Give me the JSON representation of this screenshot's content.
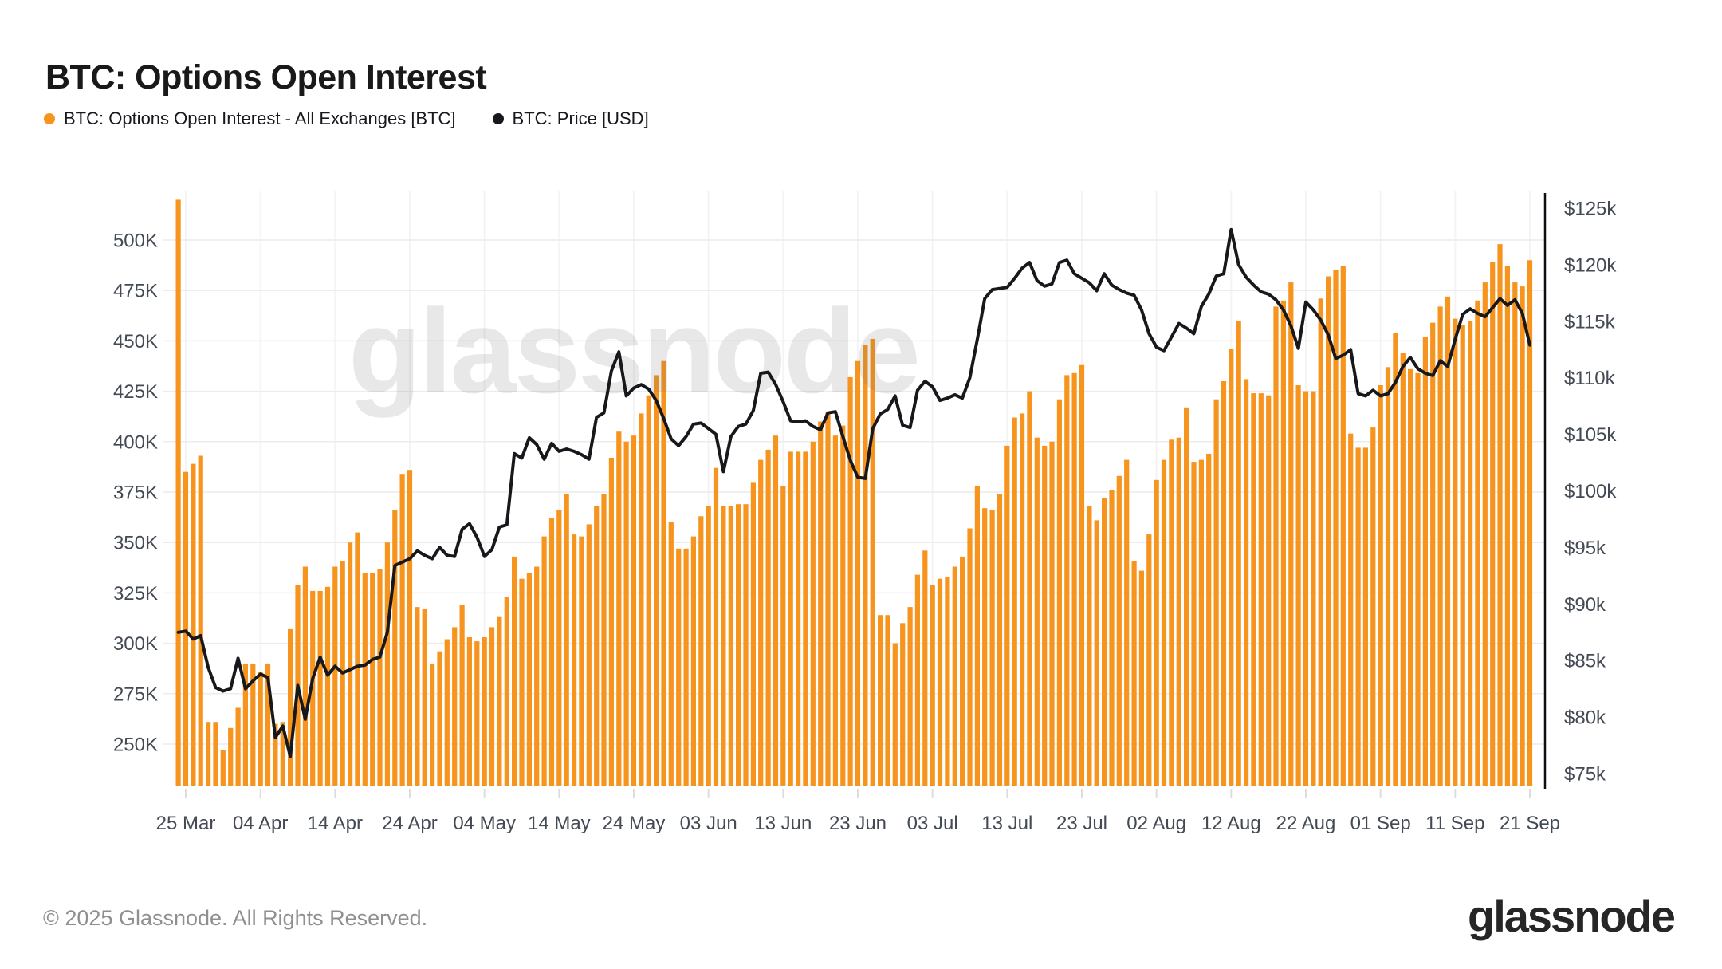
{
  "header": {
    "title": "BTC: Options Open Interest"
  },
  "legend": [
    {
      "label": "BTC: Options Open Interest - All Exchanges [BTC]",
      "color": "#f7941d"
    },
    {
      "label": "BTC: Price [USD]",
      "color": "#17181c"
    }
  ],
  "watermark": {
    "text": "glassnode"
  },
  "footer": {
    "copyright": "© 2025 Glassnode. All Rights Reserved.",
    "logo_text": "glassnode"
  },
  "chart_data": {
    "type": "combo",
    "title": "BTC: Options Open Interest",
    "grid": "horizontal-light",
    "legend_position": "top-left",
    "x_start_date": "24 Mar",
    "x_end_date": "21 Sep",
    "x_ticks": {
      "indices": [
        1,
        11,
        21,
        31,
        41,
        51,
        61,
        71,
        81,
        91,
        101,
        111,
        121,
        131,
        141,
        151,
        161,
        171,
        181
      ],
      "labels": [
        "25 Mar",
        "04 Apr",
        "14 Apr",
        "24 Apr",
        "04 May",
        "14 May",
        "24 May",
        "03 Jun",
        "13 Jun",
        "23 Jun",
        "03 Jul",
        "13 Jul",
        "23 Jul",
        "02 Aug",
        "12 Aug",
        "22 Aug",
        "01 Sep",
        "11 Sep",
        "21 Sep"
      ]
    },
    "left_axis": {
      "title": "Options Open Interest [BTC]",
      "tick_values": [
        250,
        275,
        300,
        325,
        350,
        375,
        400,
        425,
        450,
        475,
        500
      ],
      "tick_labels": [
        "250K",
        "275K",
        "300K",
        "325K",
        "350K",
        "375K",
        "400K",
        "425K",
        "450K",
        "475K",
        "500K"
      ],
      "unit": "K",
      "plot_range": [
        229.5,
        521.5
      ]
    },
    "right_axis": {
      "title": "Price [USD]",
      "tick_values": [
        75,
        80,
        85,
        90,
        95,
        100,
        105,
        110,
        115,
        120,
        125
      ],
      "tick_labels": [
        "$75k",
        "$80k",
        "$85k",
        "$90k",
        "$95k",
        "$100k",
        "$105k",
        "$110k",
        "$115k",
        "$120k",
        "$125k"
      ],
      "unit": "$k",
      "plot_range": [
        72.4,
        126.5
      ]
    },
    "series": [
      {
        "name": "BTC: Options Open Interest - All Exchanges [BTC]",
        "type": "bar",
        "color": "#f7941d",
        "axis": "left",
        "values": [
          520,
          385,
          389,
          393,
          261,
          261,
          247,
          258,
          268,
          290,
          290,
          286,
          290,
          260,
          261,
          307,
          329,
          338,
          326,
          326,
          328,
          338,
          341,
          350,
          355,
          335,
          335,
          337,
          350,
          366,
          384,
          386,
          318,
          317,
          290,
          296,
          302,
          308,
          319,
          303,
          301,
          303,
          308,
          313,
          323,
          343,
          332,
          335,
          338,
          353,
          362,
          366,
          374,
          354,
          353,
          359,
          368,
          374,
          392,
          405,
          400,
          403,
          414,
          423,
          433,
          440,
          360,
          347,
          347,
          353,
          363,
          368,
          387,
          368,
          368,
          369,
          369,
          380,
          391,
          396,
          403,
          378,
          395,
          395,
          395,
          400,
          410,
          415,
          403,
          408,
          432,
          440,
          448,
          451,
          314,
          314,
          300,
          310,
          318,
          334,
          346,
          329,
          332,
          333,
          338,
          343,
          357,
          378,
          367,
          366,
          374,
          398,
          412,
          414,
          425,
          402,
          398,
          400,
          421,
          433,
          434,
          438,
          368,
          361,
          372,
          376,
          383,
          391,
          341,
          336,
          354,
          381,
          391,
          401,
          402,
          417,
          390,
          391,
          394,
          421,
          430,
          446,
          460,
          431,
          424,
          424,
          423,
          467,
          470,
          479,
          428,
          425,
          425,
          471,
          482,
          485,
          487,
          404,
          397,
          397,
          407,
          428,
          437,
          454,
          444,
          436,
          434,
          452,
          459,
          467,
          472,
          461,
          458,
          460,
          470,
          479,
          489,
          498,
          487,
          479,
          477,
          490
        ]
      },
      {
        "name": "BTC: Price [USD]",
        "type": "line",
        "color": "#17181c",
        "axis": "right",
        "values": [
          87.5,
          87.6,
          86.9,
          87.2,
          84.4,
          82.6,
          82.3,
          82.5,
          85.2,
          82.5,
          83.2,
          83.8,
          83.5,
          78.2,
          79.2,
          76.5,
          82.8,
          79.8,
          83.4,
          85.3,
          83.7,
          84.5,
          83.9,
          84.2,
          84.5,
          84.6,
          85.1,
          85.3,
          87.5,
          93.4,
          93.7,
          94.0,
          94.7,
          94.3,
          94.0,
          95.0,
          94.3,
          94.2,
          96.6,
          97.1,
          95.9,
          94.2,
          94.8,
          96.8,
          97.0,
          103.3,
          102.9,
          104.7,
          104.1,
          102.8,
          104.2,
          103.5,
          103.7,
          103.5,
          103.2,
          102.8,
          106.5,
          106.9,
          110.6,
          112.3,
          108.4,
          109.1,
          109.4,
          109.0,
          108.0,
          106.4,
          104.6,
          104.0,
          104.8,
          105.9,
          106.0,
          105.5,
          105.0,
          101.7,
          104.8,
          105.7,
          105.9,
          107.1,
          110.4,
          110.5,
          109.4,
          107.9,
          106.2,
          106.1,
          106.2,
          105.7,
          105.4,
          106.9,
          107.0,
          104.8,
          102.7,
          101.2,
          101.1,
          105.5,
          106.8,
          107.2,
          108.4,
          105.8,
          105.6,
          108.9,
          109.7,
          109.2,
          108.0,
          108.2,
          108.5,
          108.2,
          110.0,
          113.4,
          117.0,
          117.8,
          117.9,
          118.0,
          118.8,
          119.7,
          120.2,
          118.6,
          118.1,
          118.3,
          120.2,
          120.4,
          119.2,
          118.8,
          118.4,
          117.7,
          119.2,
          118.2,
          117.8,
          117.5,
          117.3,
          116.0,
          113.9,
          112.7,
          112.4,
          113.6,
          114.8,
          114.4,
          113.9,
          116.3,
          117.4,
          119.0,
          119.2,
          123.1,
          120.0,
          118.9,
          118.2,
          117.6,
          117.4,
          116.9,
          116.0,
          114.6,
          112.6,
          116.7,
          116.0,
          115.1,
          113.8,
          111.7,
          112.0,
          112.5,
          108.6,
          108.4,
          108.9,
          108.4,
          108.6,
          109.6,
          111.0,
          111.8,
          110.8,
          110.4,
          110.2,
          111.5,
          111.0,
          113.4,
          115.6,
          116.1,
          115.7,
          115.4,
          116.2,
          117.0,
          116.4,
          116.9,
          115.7,
          112.9
        ]
      }
    ]
  }
}
